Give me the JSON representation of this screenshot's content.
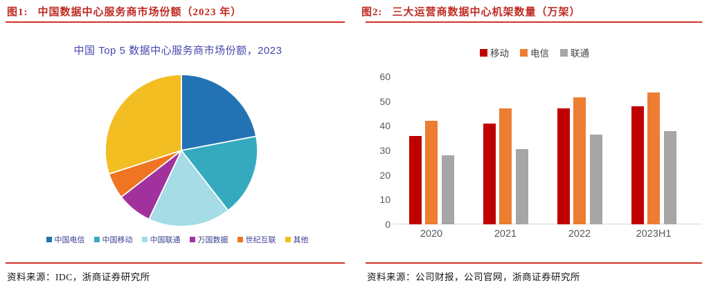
{
  "colors": {
    "header_red": "#be2b22",
    "rule_red": "#cf3226",
    "pie_title_indigo": "#4646ae",
    "pie_legend_text": "#3c3c93",
    "axis_text": "#595959",
    "source_text": "#141414"
  },
  "panels": {
    "left": {
      "header": {
        "label": "图1:",
        "title": "中国数据中心服务商市场份额（2023 年）"
      },
      "source": "资料来源：IDC，浙商证券研究所"
    },
    "right": {
      "header": {
        "label": "图2:",
        "title": "三大运营商数据中心机架数量（万架）"
      },
      "source": "资料来源：公司财报，公司官网，浙商证券研究所"
    }
  },
  "chart_data": [
    {
      "type": "pie",
      "title": "中国 Top 5 数据中心服务商市场份额，2023",
      "labels": [
        "中国电信",
        "中国移动",
        "中国联通",
        "万国数据",
        "世纪互联",
        "其他"
      ],
      "values": [
        22,
        17.5,
        17.5,
        7.5,
        5.5,
        30
      ],
      "unit": "%",
      "colors": [
        "#2373b4",
        "#35aabe",
        "#a5dce6",
        "#a2319e",
        "#ef7522",
        "#f2be22"
      ],
      "start_angle_deg": 0,
      "direction": "clockwise",
      "legend_position": "bottom"
    },
    {
      "type": "bar",
      "categories": [
        "2020",
        "2021",
        "2022",
        "2023H1"
      ],
      "series": [
        {
          "name": "移动",
          "color": "#c00000",
          "values": [
            36,
            41,
            47,
            48
          ]
        },
        {
          "name": "电信",
          "color": "#ed7d31",
          "values": [
            42,
            47,
            51.5,
            53.5
          ]
        },
        {
          "name": "联通",
          "color": "#a6a6a6",
          "values": [
            28,
            30.5,
            36.5,
            38
          ]
        }
      ],
      "ylim": [
        0,
        60
      ],
      "yticks": [
        0,
        10,
        20,
        30,
        40,
        50,
        60
      ],
      "grid": false,
      "legend_position": "top"
    }
  ]
}
